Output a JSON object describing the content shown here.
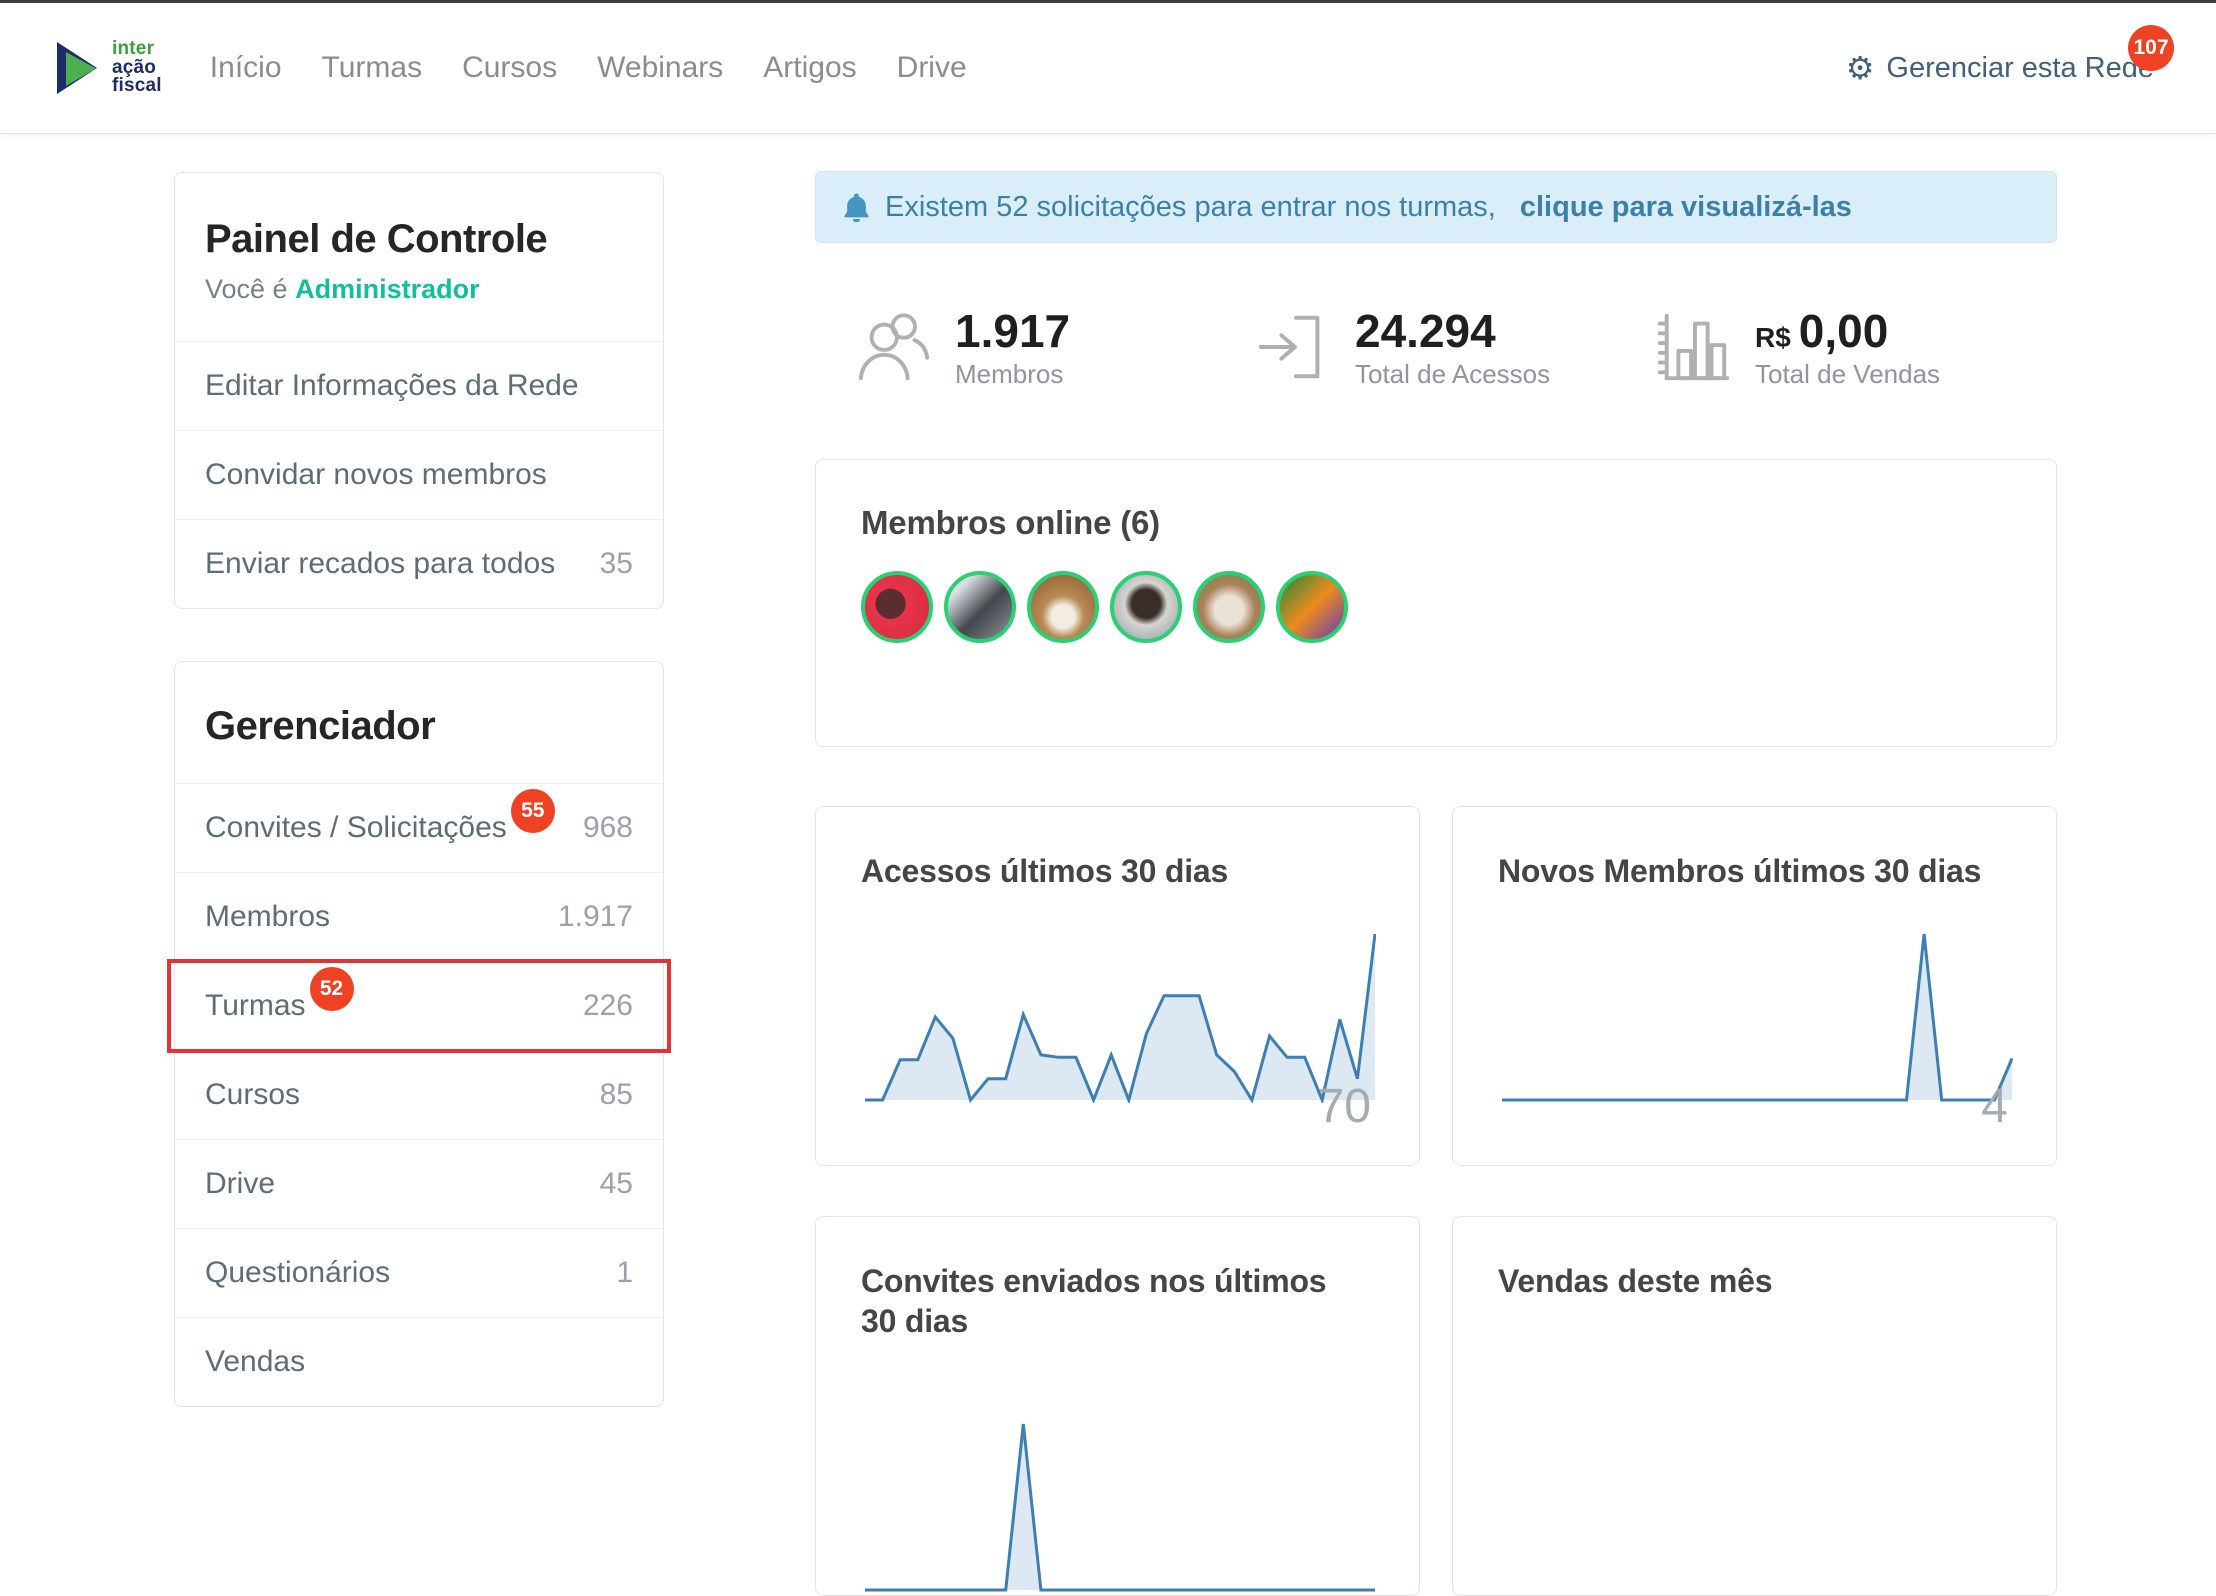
{
  "header": {
    "logo": {
      "line1": "inter",
      "line2": "ação",
      "line3": "fiscal"
    },
    "nav": [
      "Início",
      "Turmas",
      "Cursos",
      "Webinars",
      "Artigos",
      "Drive"
    ],
    "manage": {
      "label": "Gerenciar esta Rede",
      "badge": "107",
      "gear_glyph": "⚙"
    }
  },
  "sidebar": {
    "panel": {
      "title": "Painel de Controle",
      "subtitle_prefix": "Você é ",
      "role": "Administrador",
      "items": [
        {
          "label": "Editar Informações da Rede",
          "count": ""
        },
        {
          "label": "Convidar novos membros",
          "count": ""
        },
        {
          "label": "Enviar recados para todos",
          "count": "35"
        }
      ]
    },
    "manager": {
      "title": "Gerenciador",
      "items": [
        {
          "label": "Convites / Solicitações",
          "badge": "55",
          "count": "968"
        },
        {
          "label": "Membros",
          "count": "1.917"
        },
        {
          "label": "Turmas",
          "badge": "52",
          "count": "226",
          "highlighted": true
        },
        {
          "label": "Cursos",
          "count": "85"
        },
        {
          "label": "Drive",
          "count": "45"
        },
        {
          "label": "Questionários",
          "count": "1"
        },
        {
          "label": "Vendas",
          "count": ""
        }
      ]
    }
  },
  "banner": {
    "text": "Existem 52 solicitações para entrar nos turmas,",
    "bold_text": "clique para visualizá-las"
  },
  "stats": [
    {
      "icon": "members-icon",
      "value": "1.917",
      "label": "Membros"
    },
    {
      "icon": "access-icon",
      "value": "24.294",
      "label": "Total de Acessos"
    },
    {
      "icon": "sales-icon",
      "value_prefix": "R$",
      "value": "0,00",
      "label": "Total de Vendas"
    }
  ],
  "online": {
    "title": "Membros online (6)",
    "count": 6
  },
  "chart_data": [
    {
      "type": "area",
      "title": "Acessos últimos 30 dias",
      "values": [
        0,
        0,
        17,
        17,
        35,
        26,
        0,
        9,
        9,
        36,
        19,
        18,
        18,
        0,
        19,
        0,
        28,
        44,
        44,
        44,
        19,
        12,
        0,
        27,
        18,
        18,
        0,
        34,
        9,
        70
      ],
      "max_label": "70",
      "ylim": [
        0,
        70
      ],
      "line_color": "#3d7eb3",
      "fill_color": "#dce8f2",
      "grid": false,
      "legend": false
    },
    {
      "type": "area",
      "title": "Novos Membros últimos 30 dias",
      "values": [
        0,
        0,
        0,
        0,
        0,
        0,
        0,
        0,
        0,
        0,
        0,
        0,
        0,
        0,
        0,
        0,
        0,
        0,
        0,
        0,
        0,
        0,
        0,
        0,
        4,
        0,
        0,
        0,
        0,
        1
      ],
      "max_label": "4",
      "ylim": [
        0,
        4
      ],
      "line_color": "#3d7eb3",
      "fill_color": "#dce8f2",
      "grid": false,
      "legend": false
    },
    {
      "type": "area",
      "title": "Convites enviados nos últimos 30 dias",
      "values": [
        0,
        0,
        0,
        0,
        0,
        0,
        0,
        0,
        0,
        4,
        0,
        0,
        0,
        0,
        0,
        0,
        0,
        0,
        0,
        0,
        0,
        0,
        0,
        0,
        0,
        0,
        0,
        0,
        0,
        0
      ],
      "max_label": null,
      "note": "chart mostly below visible viewport; only top of one spike visible",
      "line_color": "#3d7eb3",
      "fill_color": "#dce8f2",
      "grid": false,
      "legend": false
    },
    {
      "type": "area",
      "title": "Vendas deste mês",
      "values": null,
      "note": "chart area cut off at bottom of screenshot"
    }
  ],
  "colors": {
    "badge_red": "#ef4123",
    "annotation_red": "#e13438",
    "role_teal": "#12bf9c",
    "banner_bg": "#d9eef8",
    "banner_text": "#3c80aa",
    "chart_line": "#3d7eb3",
    "chart_fill": "#dce8f2",
    "avatar_ring": "#2bcf74",
    "nav_gray": "#8c8c8c",
    "manage_slate": "#42607b",
    "logo_green": "#3aa23c",
    "logo_navy": "#1d2d69"
  }
}
